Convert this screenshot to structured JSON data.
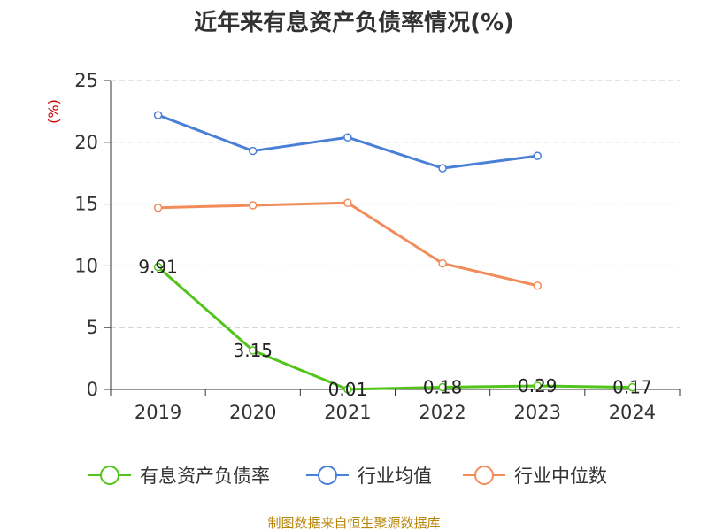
{
  "chart_data": {
    "type": "line",
    "title": "近年来有息资产负债率情况(%)",
    "xlabel": "",
    "ylabel": "(%)",
    "categories": [
      "2019",
      "2020",
      "2021",
      "2022",
      "2023",
      "2024"
    ],
    "ylim": [
      0,
      25
    ],
    "yticks": [
      "0",
      "5",
      "10",
      "15",
      "20",
      "25"
    ],
    "grid": true,
    "legend_position": "bottom",
    "series": [
      {
        "name": "有息资产负债率",
        "color": "#52c41a",
        "values": [
          9.91,
          3.15,
          0.01,
          0.18,
          0.29,
          0.17
        ],
        "labels": [
          "9.91",
          "3.15",
          "0.01",
          "0.18",
          "0.29",
          "0.17"
        ]
      },
      {
        "name": "行业均值",
        "color": "#4a7fd8",
        "values": [
          22.2,
          19.3,
          20.4,
          17.9,
          18.9,
          null
        ]
      },
      {
        "name": "行业中位数",
        "color": "#f28c5a",
        "values": [
          14.7,
          14.9,
          15.1,
          10.2,
          8.4,
          null
        ]
      }
    ]
  },
  "source": "制图数据来自恒生聚源数据库"
}
